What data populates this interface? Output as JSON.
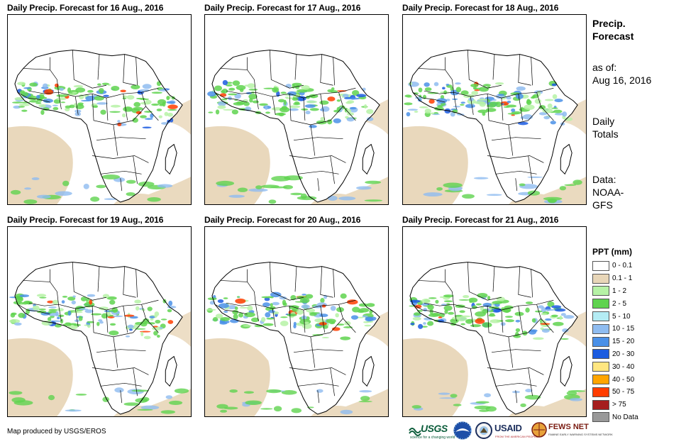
{
  "panels": [
    {
      "title": "Daily Precip. Forecast for 16 Aug., 2016",
      "day": 16
    },
    {
      "title": "Daily Precip. Forecast for 17 Aug., 2016",
      "day": 17
    },
    {
      "title": "Daily Precip. Forecast for 18 Aug., 2016",
      "day": 18
    },
    {
      "title": "Daily Precip. Forecast for 19 Aug., 2016",
      "day": 19
    },
    {
      "title": "Daily Precip. Forecast for 20 Aug., 2016",
      "day": 20
    },
    {
      "title": "Daily Precip. Forecast for 21 Aug., 2016",
      "day": 21
    }
  ],
  "side": {
    "title_line1": "Precip.",
    "title_line2": "Forecast",
    "asof_line1": "as of:",
    "asof_line2": "Aug 16, 2016",
    "totals_line1": "Daily",
    "totals_line2": "Totals",
    "data_line1": "Data:",
    "data_line2": "NOAA-",
    "data_line3": "GFS"
  },
  "legend": {
    "title": "PPT (mm)",
    "items": [
      {
        "label": "0 - 0.1",
        "color": "#ffffff"
      },
      {
        "label": "0.1 - 1",
        "color": "#e8d6b8"
      },
      {
        "label": "1 - 2",
        "color": "#b6f2a6"
      },
      {
        "label": "2 - 5",
        "color": "#5fd34f"
      },
      {
        "label": "5 - 10",
        "color": "#b4ecf4"
      },
      {
        "label": "10 - 15",
        "color": "#8fbcf0"
      },
      {
        "label": "15 - 20",
        "color": "#4a90e8"
      },
      {
        "label": "20 - 30",
        "color": "#1c5ce0"
      },
      {
        "label": "30 - 40",
        "color": "#ffe680"
      },
      {
        "label": "40 - 50",
        "color": "#ffa500"
      },
      {
        "label": "50 - 75",
        "color": "#ff3d00"
      },
      {
        "label": "> 75",
        "color": "#a51e1e"
      },
      {
        "label": "No Data",
        "color": "#999999"
      }
    ]
  },
  "credit": "Map produced by USGS/EROS",
  "logos": {
    "usgs": "USGS",
    "usgs_tagline": "science for a changing world",
    "usaid": "USAID",
    "usaid_tagline": "FROM THE AMERICAN PEOPLE",
    "fews": "FEWS NET",
    "fews_tagline": "FAMINE EARLY WARNING SYSTEMS NETWORK"
  }
}
